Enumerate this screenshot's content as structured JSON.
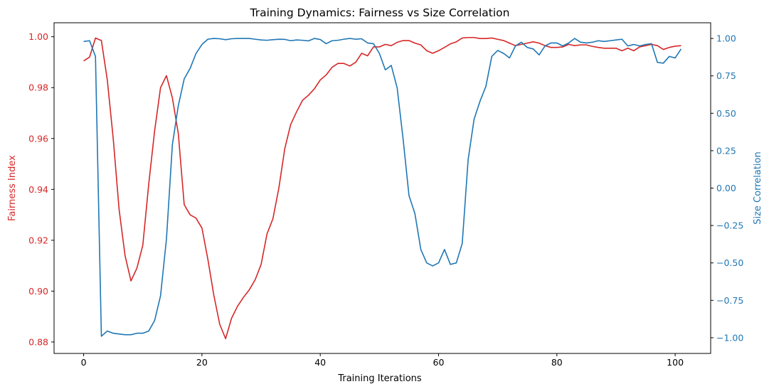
{
  "chart_data": {
    "type": "line",
    "title": "Training Dynamics: Fairness vs Size Correlation",
    "xlabel": "Training Iterations",
    "ylabel_left": "Fairness Index",
    "ylabel_right": "Size Correlation",
    "xlim": [
      -5,
      106
    ],
    "ylim_left": [
      0.8755,
      1.0055
    ],
    "ylim_right": [
      -1.105,
      1.105
    ],
    "x_ticks": [
      0,
      20,
      40,
      60,
      80,
      100
    ],
    "y_left_ticks": [
      0.88,
      0.9,
      0.92,
      0.94,
      0.96,
      0.98,
      1.0
    ],
    "y_left_tick_labels": [
      "0.88",
      "0.90",
      "0.92",
      "0.94",
      "0.96",
      "0.98",
      "1.00"
    ],
    "y_right_ticks": [
      -1.0,
      -0.75,
      -0.5,
      -0.25,
      0.0,
      0.25,
      0.5,
      0.75,
      1.0
    ],
    "y_right_tick_labels": [
      "−1.00",
      "−0.75",
      "−0.50",
      "−0.25",
      "0.00",
      "0.25",
      "0.50",
      "0.75",
      "1.00"
    ],
    "grid": false,
    "legend": "none",
    "colors": {
      "left": "#d62728",
      "right": "#1f77b4"
    },
    "series": [
      {
        "axis": "left",
        "color": "#d62728",
        "x": [
          0,
          1,
          2,
          3,
          4,
          5,
          6,
          7,
          8,
          9,
          10,
          11,
          12,
          13,
          14,
          15,
          16,
          17,
          18,
          19,
          20,
          21,
          22,
          23,
          24,
          25,
          26,
          27,
          28,
          29,
          30,
          31,
          32,
          33,
          34,
          35,
          36,
          37,
          38,
          39,
          40,
          41,
          42,
          43,
          44,
          45,
          46,
          47,
          48,
          49,
          50,
          51,
          52,
          53,
          54,
          55,
          56,
          57,
          58,
          59,
          60,
          61,
          62,
          63,
          64,
          65,
          66,
          67,
          68,
          69,
          70,
          71,
          72,
          73,
          74,
          75,
          76,
          77,
          78,
          79,
          80,
          81,
          82,
          83,
          84,
          85,
          86,
          87,
          88,
          89,
          90,
          91,
          92,
          93,
          94,
          95,
          96,
          97,
          98,
          99,
          100,
          101
        ],
        "values": [
          0.9905,
          0.992,
          0.9995,
          0.9985,
          0.983,
          0.96,
          0.932,
          0.914,
          0.904,
          0.909,
          0.918,
          0.942,
          0.963,
          0.98,
          0.9847,
          0.976,
          0.962,
          0.934,
          0.93,
          0.9287,
          0.9248,
          0.9125,
          0.8985,
          0.887,
          0.8813,
          0.8893,
          0.894,
          0.8975,
          0.9005,
          0.9045,
          0.9105,
          0.9225,
          0.9285,
          0.9405,
          0.956,
          0.9655,
          0.9705,
          0.975,
          0.977,
          0.9795,
          0.983,
          0.985,
          0.988,
          0.9895,
          0.9895,
          0.9885,
          0.99,
          0.9935,
          0.9925,
          0.996,
          0.996,
          0.997,
          0.9965,
          0.9978,
          0.9985,
          0.9985,
          0.9975,
          0.9968,
          0.9945,
          0.9935,
          0.9945,
          0.9958,
          0.9972,
          0.998,
          0.9995,
          0.9997,
          0.9997,
          0.9993,
          0.9993,
          0.9995,
          0.999,
          0.9985,
          0.9975,
          0.9965,
          0.997,
          0.9975,
          0.998,
          0.9975,
          0.9965,
          0.9958,
          0.9958,
          0.996,
          0.997,
          0.9965,
          0.9968,
          0.9968,
          0.9962,
          0.9958,
          0.9955,
          0.9955,
          0.9955,
          0.9945,
          0.9955,
          0.9945,
          0.996,
          0.9965,
          0.997,
          0.9965,
          0.995,
          0.9958,
          0.9963,
          0.9965
        ]
      },
      {
        "axis": "right",
        "color": "#1f77b4",
        "x": [
          0,
          1,
          2,
          3,
          4,
          5,
          6,
          7,
          8,
          9,
          10,
          11,
          12,
          13,
          14,
          15,
          16,
          17,
          18,
          19,
          20,
          21,
          22,
          23,
          24,
          25,
          26,
          27,
          28,
          29,
          30,
          31,
          32,
          33,
          34,
          35,
          36,
          37,
          38,
          39,
          40,
          41,
          42,
          43,
          44,
          45,
          46,
          47,
          48,
          49,
          50,
          51,
          52,
          53,
          54,
          55,
          56,
          57,
          58,
          59,
          60,
          61,
          62,
          63,
          64,
          65,
          66,
          67,
          68,
          69,
          70,
          71,
          72,
          73,
          74,
          75,
          76,
          77,
          78,
          79,
          80,
          81,
          82,
          83,
          84,
          85,
          86,
          87,
          88,
          89,
          90,
          91,
          92,
          93,
          94,
          95,
          96,
          97,
          98,
          99,
          100,
          101
        ],
        "values": [
          0.98,
          0.985,
          0.88,
          -0.99,
          -0.955,
          -0.97,
          -0.975,
          -0.98,
          -0.98,
          -0.97,
          -0.97,
          -0.955,
          -0.885,
          -0.72,
          -0.34,
          0.29,
          0.55,
          0.73,
          0.8,
          0.9,
          0.96,
          0.995,
          1.0,
          0.998,
          0.992,
          0.998,
          1.0,
          1.0,
          1.0,
          0.995,
          0.99,
          0.988,
          0.992,
          0.995,
          0.994,
          0.985,
          0.99,
          0.988,
          0.984,
          1.0,
          0.993,
          0.965,
          0.985,
          0.988,
          0.995,
          1.0,
          0.995,
          0.998,
          0.97,
          0.965,
          0.9,
          0.79,
          0.82,
          0.67,
          0.33,
          -0.05,
          -0.17,
          -0.41,
          -0.5,
          -0.52,
          -0.5,
          -0.41,
          -0.51,
          -0.5,
          -0.37,
          0.19,
          0.46,
          0.58,
          0.68,
          0.88,
          0.92,
          0.9,
          0.87,
          0.95,
          0.975,
          0.94,
          0.93,
          0.89,
          0.95,
          0.97,
          0.97,
          0.95,
          0.97,
          1.0,
          0.975,
          0.97,
          0.975,
          0.985,
          0.98,
          0.985,
          0.99,
          0.995,
          0.95,
          0.96,
          0.95,
          0.96,
          0.965,
          0.84,
          0.835,
          0.88,
          0.87,
          0.93
        ]
      }
    ]
  }
}
